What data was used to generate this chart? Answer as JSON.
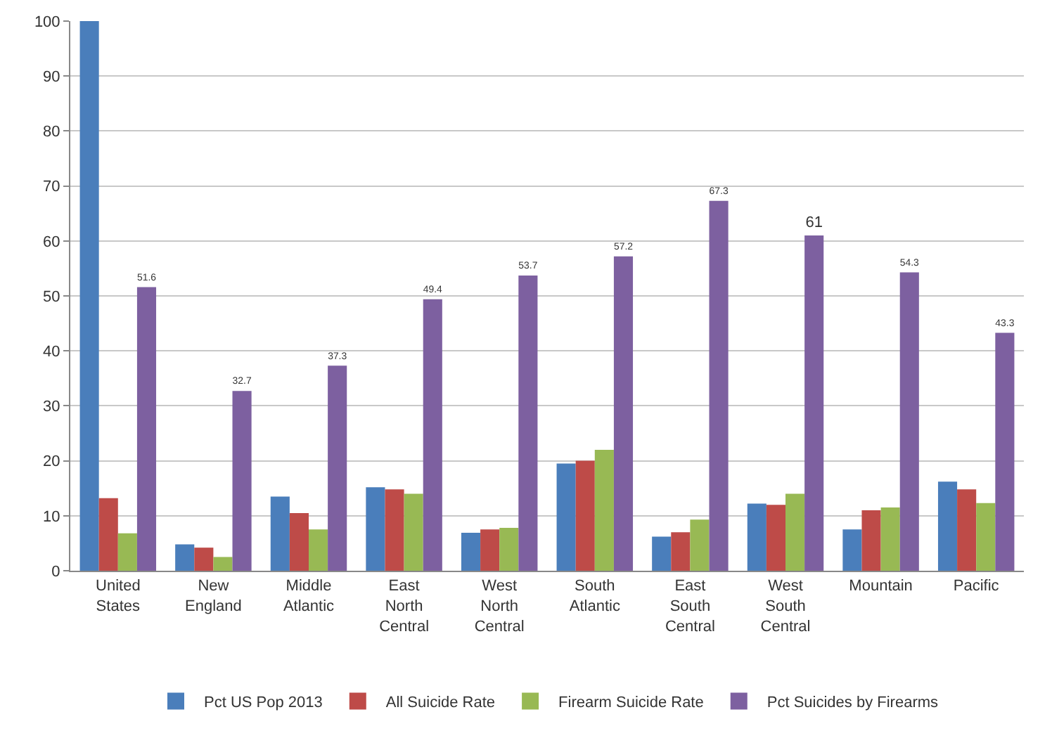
{
  "chart_data": {
    "type": "bar",
    "categories": [
      "United States",
      "New England",
      "Middle Atlantic",
      "East North Central",
      "West North Central",
      "South Atlantic",
      "East South Central",
      "West South Central",
      "Mountain",
      "Pacific"
    ],
    "series": [
      {
        "name": "Pct US Pop 2013",
        "color": "#4a7ebb",
        "values": [
          100,
          4.8,
          13.5,
          15.2,
          6.9,
          19.5,
          6.2,
          12.2,
          7.5,
          16.2
        ]
      },
      {
        "name": "All Suicide Rate",
        "color": "#be4b48",
        "values": [
          13.2,
          4.2,
          10.5,
          14.8,
          7.5,
          20,
          7,
          12,
          11,
          14.8
        ]
      },
      {
        "name": "Firearm Suicide Rate",
        "color": "#98b954",
        "values": [
          6.8,
          2.5,
          7.5,
          14,
          7.8,
          22,
          9.3,
          14,
          11.5,
          12.3
        ]
      },
      {
        "name": "Pct Suicides by Firearms",
        "color": "#7d60a0",
        "values": [
          51.6,
          32.7,
          37.3,
          49.4,
          53.7,
          57.2,
          67.3,
          61,
          54.3,
          43.3
        ],
        "value_labels": [
          "51.6",
          "32.7",
          "37.3",
          "49.4",
          "53.7",
          "57.2",
          "67.3",
          "61",
          "54.3",
          "43.3"
        ]
      }
    ],
    "ylim": [
      0,
      100
    ],
    "yticks": [
      0,
      10,
      20,
      30,
      40,
      50,
      60,
      70,
      80,
      90,
      100
    ],
    "grid": "y",
    "legend": "bottom"
  }
}
